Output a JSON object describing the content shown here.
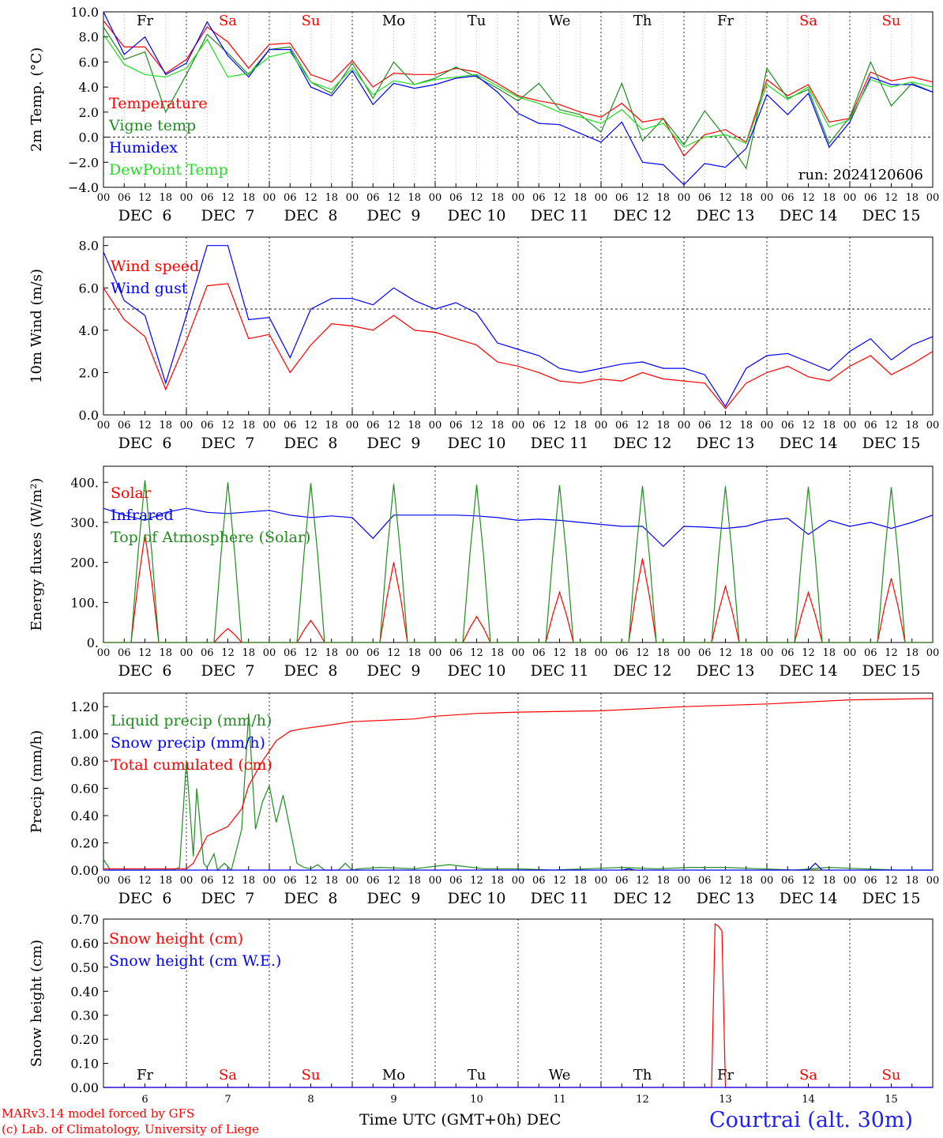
{
  "chart_data": [
    {
      "type": "line",
      "ylabel": "2m Temp. (°C)",
      "ylim": [
        -4,
        10
      ],
      "yticks": [
        "10.0",
        "8.0",
        "6.0",
        "4.0",
        "2.0",
        "0.0",
        "−2.0",
        "−4.0"
      ],
      "reference_line": 0.0,
      "hour_ticks": [
        "00",
        "06",
        "12",
        "18",
        "00",
        "06",
        "12",
        "18",
        "00",
        "06",
        "12",
        "18",
        "00",
        "06",
        "12",
        "18",
        "00",
        "06",
        "12",
        "18",
        "00",
        "06",
        "12",
        "18",
        "00",
        "06",
        "12",
        "18",
        "00",
        "06",
        "12",
        "18",
        "00",
        "06",
        "12",
        "18",
        "00",
        "06",
        "12",
        "18",
        "00"
      ],
      "date_labels": [
        "DEC  6",
        "DEC  7",
        "DEC  8",
        "DEC  9",
        "DEC 10",
        "DEC 11",
        "DEC 12",
        "DEC 13",
        "DEC 14",
        "DEC 15"
      ],
      "day_labels": [
        "Fr",
        "Sa",
        "Su",
        "Mo",
        "Tu",
        "We",
        "Th",
        "Fr",
        "Sa",
        "Su"
      ],
      "day_colors": [
        "#000000",
        "#ff0000",
        "#ff0000",
        "#000000",
        "#000000",
        "#000000",
        "#000000",
        "#000000",
        "#ff0000",
        "#ff0000"
      ],
      "run_label": "run: 2024120606",
      "x_hours": [
        0,
        6,
        12,
        18,
        24,
        30,
        36,
        42,
        48,
        54,
        60,
        66,
        72,
        78,
        84,
        90,
        96,
        102,
        108,
        114,
        120,
        126,
        132,
        138,
        144,
        150,
        156,
        162,
        168,
        174,
        180,
        186,
        192,
        198,
        204,
        210,
        216,
        222,
        228,
        234,
        240
      ],
      "series": [
        {
          "name": "Temperature",
          "color": "#ff0000",
          "values": [
            9.3,
            7.2,
            7.2,
            5.1,
            6.2,
            8.8,
            7.6,
            5.5,
            7.4,
            7.5,
            5.0,
            4.4,
            6.1,
            4.0,
            5.1,
            5.0,
            5.0,
            5.5,
            5.2,
            4.3,
            3.3,
            2.9,
            2.6,
            2.0,
            1.6,
            2.7,
            1.2,
            1.5,
            -1.5,
            0.2,
            0.6,
            -0.4,
            4.6,
            3.3,
            4.2,
            1.2,
            1.5,
            5.2,
            4.5,
            4.8,
            4.4
          ]
        },
        {
          "name": "Vigne temp",
          "color": "#228b22",
          "values": [
            8.8,
            6.2,
            6.8,
            2.0,
            5.0,
            8.2,
            6.7,
            5.0,
            7.0,
            7.2,
            4.4,
            3.5,
            5.9,
            3.1,
            6.0,
            4.2,
            4.7,
            5.6,
            4.8,
            3.9,
            2.9,
            4.3,
            2.2,
            1.8,
            0.4,
            4.3,
            -0.3,
            1.5,
            -0.6,
            2.1,
            0.0,
            -2.5,
            5.5,
            3.1,
            3.8,
            -0.5,
            1.6,
            6.0,
            2.5,
            4.3,
            3.6
          ]
        },
        {
          "name": "Humidex",
          "color": "#0000ff",
          "values": [
            10.0,
            6.6,
            8.0,
            5.0,
            5.9,
            9.2,
            6.5,
            4.8,
            7.0,
            7.0,
            4.0,
            3.3,
            5.3,
            2.6,
            4.3,
            3.9,
            4.2,
            4.7,
            4.9,
            3.6,
            1.9,
            1.1,
            1.0,
            0.3,
            -0.4,
            1.2,
            -2.0,
            -2.2,
            -3.8,
            -2.1,
            -2.4,
            -0.9,
            3.4,
            1.8,
            3.5,
            -0.8,
            1.2,
            4.8,
            4.2,
            4.2,
            3.6
          ]
        },
        {
          "name": "DewPoint Temp",
          "color": "#22dd22",
          "values": [
            8.2,
            5.8,
            5.0,
            4.8,
            5.5,
            7.8,
            4.8,
            5.1,
            6.4,
            6.8,
            4.4,
            3.8,
            5.5,
            3.4,
            4.5,
            4.2,
            4.6,
            4.8,
            5.0,
            4.1,
            3.2,
            2.7,
            2.0,
            1.6,
            1.1,
            2.2,
            0.6,
            1.1,
            -0.8,
            0.0,
            0.2,
            -0.5,
            4.2,
            3.0,
            4.0,
            0.8,
            1.4,
            4.6,
            4.0,
            4.4,
            4.0
          ]
        }
      ]
    },
    {
      "type": "line",
      "ylabel": "10m Wind (m/s)",
      "ylim": [
        0,
        8.4
      ],
      "yticks": [
        "8.0",
        "6.0",
        "4.0",
        "2.0",
        "0.0"
      ],
      "reference_line": 5.0,
      "hour_ticks": [
        "00",
        "06",
        "12",
        "18",
        "00",
        "06",
        "12",
        "18",
        "00",
        "06",
        "12",
        "18",
        "00",
        "06",
        "12",
        "18",
        "00",
        "06",
        "12",
        "18",
        "00",
        "06",
        "12",
        "18",
        "00",
        "06",
        "12",
        "18",
        "00",
        "06",
        "12",
        "18",
        "00",
        "06",
        "12",
        "18",
        "00",
        "06",
        "12",
        "18",
        "00"
      ],
      "date_labels": [
        "DEC  6",
        "DEC  7",
        "DEC  8",
        "DEC  9",
        "DEC 10",
        "DEC 11",
        "DEC 12",
        "DEC 13",
        "DEC 14",
        "DEC 15"
      ],
      "x_hours": [
        0,
        6,
        12,
        18,
        24,
        30,
        36,
        42,
        48,
        54,
        60,
        66,
        72,
        78,
        84,
        90,
        96,
        102,
        108,
        114,
        120,
        126,
        132,
        138,
        144,
        150,
        156,
        162,
        168,
        174,
        180,
        186,
        192,
        198,
        204,
        210,
        216,
        222,
        228,
        234,
        240
      ],
      "series": [
        {
          "name": "Wind speed",
          "color": "#ff0000",
          "values": [
            6.0,
            4.5,
            3.7,
            1.2,
            3.5,
            6.1,
            6.2,
            3.6,
            3.8,
            2.0,
            3.3,
            4.3,
            4.2,
            4.0,
            4.7,
            4.0,
            3.9,
            3.6,
            3.3,
            2.5,
            2.3,
            2.0,
            1.6,
            1.5,
            1.7,
            1.6,
            2.0,
            1.7,
            1.6,
            1.5,
            0.3,
            1.5,
            2.0,
            2.3,
            1.8,
            1.6,
            2.3,
            2.8,
            1.9,
            2.4,
            3.0
          ]
        },
        {
          "name": "Wind gust",
          "color": "#0000ff",
          "values": [
            7.7,
            5.4,
            4.7,
            1.5,
            4.7,
            8.0,
            8.0,
            4.5,
            4.6,
            2.7,
            5.0,
            5.5,
            5.5,
            5.2,
            6.0,
            5.4,
            5.0,
            5.3,
            4.8,
            3.4,
            3.1,
            2.8,
            2.2,
            2.0,
            2.2,
            2.4,
            2.5,
            2.2,
            2.2,
            1.9,
            0.4,
            2.2,
            2.8,
            2.9,
            2.5,
            2.1,
            3.0,
            3.6,
            2.6,
            3.3,
            3.7
          ]
        }
      ]
    },
    {
      "type": "line",
      "ylabel": "Energy fluxes (W/m²)",
      "ylim": [
        0,
        440
      ],
      "yticks": [
        "400.",
        "300.",
        "200.",
        "100.",
        "0."
      ],
      "hour_ticks": [
        "00",
        "06",
        "12",
        "18",
        "00",
        "06",
        "12",
        "18",
        "00",
        "06",
        "12",
        "18",
        "00",
        "06",
        "12",
        "18",
        "00",
        "06",
        "12",
        "18",
        "00",
        "06",
        "12",
        "18",
        "00",
        "06",
        "12",
        "18",
        "00",
        "06",
        "12",
        "18",
        "00",
        "06",
        "12",
        "18",
        "00",
        "06",
        "12",
        "18",
        "00"
      ],
      "date_labels": [
        "DEC  6",
        "DEC  7",
        "DEC  8",
        "DEC  9",
        "DEC 10",
        "DEC 11",
        "DEC 12",
        "DEC 13",
        "DEC 14",
        "DEC 15"
      ],
      "diurnal_hours": [
        8,
        10,
        12,
        14,
        16
      ],
      "series": [
        {
          "name": "Solar",
          "color": "#ff0000",
          "daily_peaks": [
            270,
            35,
            55,
            200,
            65,
            125,
            210,
            140,
            125,
            160
          ]
        },
        {
          "name": "Infrared",
          "color": "#0000ff",
          "x_hours": [
            0,
            6,
            12,
            18,
            24,
            30,
            36,
            42,
            48,
            54,
            60,
            66,
            72,
            78,
            84,
            90,
            96,
            102,
            108,
            114,
            120,
            126,
            132,
            138,
            144,
            150,
            156,
            162,
            168,
            174,
            180,
            186,
            192,
            198,
            204,
            210,
            216,
            222,
            228,
            234,
            240
          ],
          "values": [
            335,
            318,
            305,
            325,
            335,
            325,
            322,
            326,
            330,
            318,
            312,
            316,
            312,
            260,
            318,
            318,
            318,
            318,
            316,
            312,
            305,
            308,
            305,
            300,
            295,
            290,
            290,
            240,
            290,
            288,
            285,
            290,
            305,
            310,
            270,
            305,
            290,
            300,
            285,
            300,
            318
          ]
        },
        {
          "name": "Top of Atmosphere (Solar)",
          "color": "#228b22",
          "daily_peaks": [
            405,
            400,
            398,
            396,
            394,
            393,
            391,
            390,
            389,
            388
          ]
        }
      ]
    },
    {
      "type": "line",
      "ylabel": "Precip (mm/h)",
      "ylim": [
        0,
        1.3
      ],
      "yticks": [
        "1.20",
        "1.00",
        "0.80",
        "0.60",
        "0.40",
        "0.20",
        "0.00"
      ],
      "hour_ticks": [
        "00",
        "06",
        "12",
        "18",
        "00",
        "06",
        "12",
        "18",
        "00",
        "06",
        "12",
        "18",
        "00",
        "06",
        "12",
        "18",
        "00",
        "06",
        "12",
        "18",
        "00",
        "06",
        "12",
        "18",
        "00",
        "06",
        "12",
        "18",
        "00",
        "06",
        "12",
        "18",
        "00",
        "06",
        "12",
        "18",
        "00",
        "06",
        "12",
        "18",
        "00"
      ],
      "date_labels": [
        "DEC  6",
        "DEC  7",
        "DEC  8",
        "DEC  9",
        "DEC 10",
        "DEC 11",
        "DEC 12",
        "DEC 13",
        "DEC 14",
        "DEC 15"
      ],
      "series": [
        {
          "name": "Liquid precip (mm/h)",
          "color": "#228b22",
          "x_hours": [
            0,
            2,
            4,
            20,
            22,
            24,
            26,
            27,
            29,
            30,
            32,
            33,
            35,
            37,
            40,
            42,
            44,
            46,
            48,
            50,
            52,
            54,
            56,
            58,
            60,
            62,
            64,
            66,
            68,
            70,
            72,
            74,
            80,
            90,
            100,
            110,
            120,
            130,
            140,
            150,
            160,
            170,
            180,
            190,
            200,
            210,
            220,
            230,
            240
          ],
          "values": [
            0.08,
            0.0,
            0.0,
            0.0,
            0.02,
            0.8,
            0.1,
            0.6,
            0.05,
            0.02,
            0.12,
            0.0,
            0.05,
            0.0,
            0.3,
            1.15,
            0.3,
            0.5,
            0.62,
            0.35,
            0.55,
            0.3,
            0.05,
            0.02,
            0.01,
            0.04,
            0.0,
            0.0,
            0.0,
            0.05,
            0.0,
            0.01,
            0.02,
            0.01,
            0.04,
            0.01,
            0.01,
            0.0,
            0.01,
            0.02,
            0.01,
            0.02,
            0.02,
            0.01,
            0.0,
            0.02,
            0.01,
            0.0,
            0.0
          ]
        },
        {
          "name": "Snow precip (mm/h)",
          "color": "#0000ff",
          "x_hours": [
            0,
            150,
            152,
            154,
            160,
            180,
            204,
            206,
            208,
            220,
            240
          ],
          "values": [
            0.0,
            0.0,
            0.01,
            0.0,
            0.0,
            0.0,
            0.0,
            0.05,
            0.0,
            0.0,
            0.0
          ]
        },
        {
          "name": "Total cumulated (cm)",
          "color": "#ff0000",
          "x_hours": [
            0,
            24,
            26,
            30,
            36,
            40,
            42,
            46,
            50,
            54,
            58,
            64,
            72,
            90,
            96,
            108,
            120,
            144,
            168,
            192,
            216,
            240
          ],
          "values": [
            0.01,
            0.01,
            0.05,
            0.25,
            0.32,
            0.45,
            0.62,
            0.8,
            0.95,
            1.02,
            1.04,
            1.06,
            1.09,
            1.11,
            1.13,
            1.15,
            1.16,
            1.17,
            1.2,
            1.22,
            1.25,
            1.26
          ]
        }
      ]
    },
    {
      "type": "line",
      "ylabel": "Snow height (cm)",
      "ylim": [
        0,
        0.7
      ],
      "yticks": [
        "0.70",
        "0.60",
        "0.50",
        "0.40",
        "0.30",
        "0.20",
        "0.10",
        "0.00"
      ],
      "day_labels": [
        "Fr",
        "Sa",
        "Su",
        "Mo",
        "Tu",
        "We",
        "Th",
        "Fr",
        "Sa",
        "Su"
      ],
      "day_colors": [
        "#000000",
        "#ff0000",
        "#ff0000",
        "#000000",
        "#000000",
        "#000000",
        "#000000",
        "#000000",
        "#ff0000",
        "#ff0000"
      ],
      "day_numbers": [
        "6",
        "7",
        "8",
        "9",
        "10",
        "11",
        "12",
        "13",
        "14",
        "15"
      ],
      "series": [
        {
          "name": "Snow height (cm)",
          "color": "#ff0000",
          "x_hours": [
            0,
            176,
            177,
            178,
            179,
            180,
            240
          ],
          "values": [
            0.0,
            0.0,
            0.68,
            0.67,
            0.65,
            0.0,
            0.0
          ]
        },
        {
          "name": "Snow height (cm W.E.)",
          "color": "#0000ff",
          "x_hours": [
            0,
            240
          ],
          "values": [
            0.0,
            0.0
          ]
        }
      ]
    }
  ],
  "footer": {
    "credit_line1": "MARv3.14 model forced by GFS",
    "credit_line2": "(c) Lab. of Climatology, University of Liege",
    "xlabel": "Time UTC (GMT+0h) DEC",
    "station": "Courtrai (alt. 30m)"
  }
}
